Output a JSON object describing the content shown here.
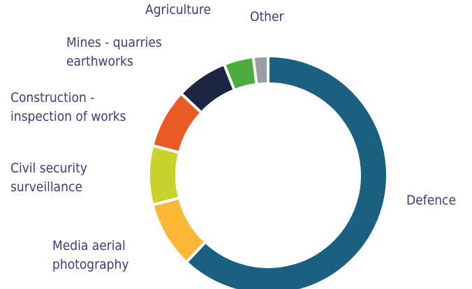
{
  "chart_data": {
    "type": "donut",
    "categories": [
      [
        "Defence"
      ],
      [
        "Media aerial",
        "photography"
      ],
      [
        "Civil security",
        "surveillance"
      ],
      [
        "Construction -",
        "inspection of works"
      ],
      [
        "Mines - quarries",
        "earthworks"
      ],
      [
        "Agriculture"
      ],
      [
        "Other"
      ]
    ],
    "values": [
      62,
      9,
      8,
      8,
      7,
      4,
      2
    ],
    "colors": [
      "#1a6080",
      "#fbb735",
      "#c9d12c",
      "#ea5a24",
      "#1c2541",
      "#4aac3c",
      "#9a9fa3"
    ]
  }
}
